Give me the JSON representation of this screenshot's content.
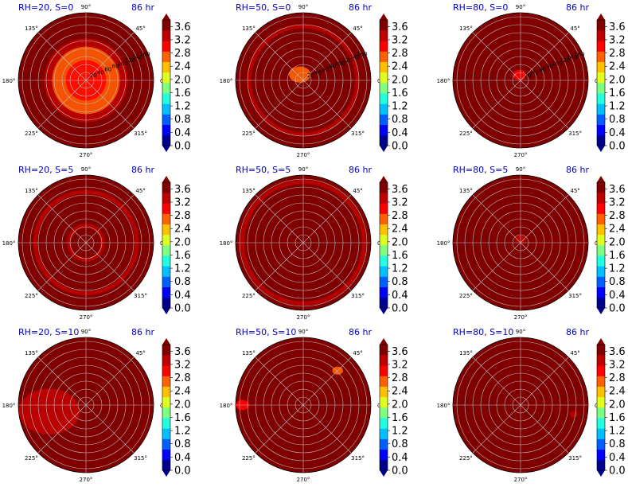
{
  "figure": {
    "panels": [
      {
        "title": "RH=20, S=0",
        "time": "86 hr",
        "show_radial_labels": true
      },
      {
        "title": "RH=50, S=0",
        "time": "86 hr",
        "show_radial_labels": true
      },
      {
        "title": "RH=80, S=0",
        "time": "86 hr",
        "show_radial_labels": true
      },
      {
        "title": "RH=20, S=5",
        "time": "86 hr",
        "show_radial_labels": false
      },
      {
        "title": "RH=50, S=5",
        "time": "86 hr",
        "show_radial_labels": false
      },
      {
        "title": "RH=80, S=5",
        "time": "86 hr",
        "show_radial_labels": false
      },
      {
        "title": "RH=20, S=10",
        "time": "86 hr",
        "show_radial_labels": false
      },
      {
        "title": "RH=50, S=10",
        "time": "86 hr",
        "show_radial_labels": false
      },
      {
        "title": "RH=80, S=10",
        "time": "86 hr",
        "show_radial_labels": false
      }
    ],
    "angle_labels": [
      "0°",
      "45°",
      "90°",
      "135°",
      "180°",
      "225°",
      "270°",
      "315°"
    ],
    "radial_labels": [
      "20",
      "40",
      "60",
      "80",
      "100",
      "120",
      "140",
      "160"
    ],
    "colorbar_ticks": [
      "0.0",
      "0.4",
      "0.8",
      "1.2",
      "1.6",
      "2.0",
      "2.4",
      "2.8",
      "3.2",
      "3.6"
    ],
    "colormap": [
      "#00008f",
      "#0000ff",
      "#0060ff",
      "#00c0ff",
      "#20ffdf",
      "#7fff7f",
      "#dfff20",
      "#ffc000",
      "#ff6000",
      "#ff0000",
      "#c00000",
      "#800000"
    ]
  },
  "chart_data": {
    "type": "heatmap",
    "projection": "polar",
    "colorbar_range": [
      0.0,
      3.8
    ],
    "colorbar_ticks": [
      0.0,
      0.4,
      0.8,
      1.2,
      1.6,
      2.0,
      2.4,
      2.8,
      3.2,
      3.6
    ],
    "theta_ticks_deg": [
      0,
      45,
      90,
      135,
      180,
      225,
      270,
      315
    ],
    "r_ticks": [
      20,
      40,
      60,
      80,
      100,
      120,
      140,
      160
    ],
    "panels": [
      {
        "title": "RH=20, S=0",
        "time": "86 hr",
        "background_level": "max",
        "features": [
          {
            "shape": "disk",
            "r_frac": 0.62,
            "level": 3.3
          },
          {
            "shape": "disk",
            "r_frac": 0.5,
            "level": 2.9
          },
          {
            "shape": "disk",
            "r_frac": 0.3,
            "level": 3.1
          }
        ]
      },
      {
        "title": "RH=50, S=0",
        "time": "86 hr",
        "background_level": "max",
        "features": [
          {
            "shape": "ring",
            "r_frac": 0.8,
            "level": 3.3
          },
          {
            "shape": "blob",
            "theta_deg": 120,
            "r_frac": 0.1,
            "size_frac": 0.16,
            "level": 2.6
          }
        ]
      },
      {
        "title": "RH=80, S=0",
        "time": "86 hr",
        "background_level": "max",
        "features": [
          {
            "shape": "blob",
            "theta_deg": 100,
            "r_frac": 0.08,
            "size_frac": 0.1,
            "level": 3.0
          }
        ]
      },
      {
        "title": "RH=20, S=5",
        "time": "86 hr",
        "background_level": "max",
        "features": [
          {
            "shape": "ring",
            "r_frac": 0.75,
            "level": 3.4
          },
          {
            "shape": "ring",
            "r_frac": 0.25,
            "level": 3.4
          }
        ]
      },
      {
        "title": "RH=50, S=5",
        "time": "86 hr",
        "background_level": "max",
        "features": [
          {
            "shape": "ring",
            "r_frac": 0.9,
            "level": 3.5
          }
        ]
      },
      {
        "title": "RH=80, S=5",
        "time": "86 hr",
        "background_level": "max",
        "features": [
          {
            "shape": "blob",
            "theta_deg": 90,
            "r_frac": 0.05,
            "size_frac": 0.08,
            "level": 3.3
          }
        ]
      },
      {
        "title": "RH=20, S=10",
        "time": "86 hr",
        "background_level": "max",
        "features": [
          {
            "shape": "blob",
            "theta_deg": 190,
            "r_frac": 0.55,
            "size_frac": 0.45,
            "level": 3.4
          }
        ]
      },
      {
        "title": "RH=50, S=10",
        "time": "86 hr",
        "background_level": "max",
        "features": [
          {
            "shape": "blob",
            "theta_deg": 45,
            "r_frac": 0.72,
            "size_frac": 0.08,
            "level": 2.6
          },
          {
            "shape": "blob",
            "theta_deg": 180,
            "r_frac": 0.9,
            "size_frac": 0.1,
            "level": 3.2
          }
        ]
      },
      {
        "title": "RH=80, S=10",
        "time": "86 hr",
        "background_level": "max",
        "features": [
          {
            "shape": "blob",
            "theta_deg": 350,
            "r_frac": 0.8,
            "size_frac": 0.06,
            "level": 3.3
          }
        ]
      }
    ]
  }
}
